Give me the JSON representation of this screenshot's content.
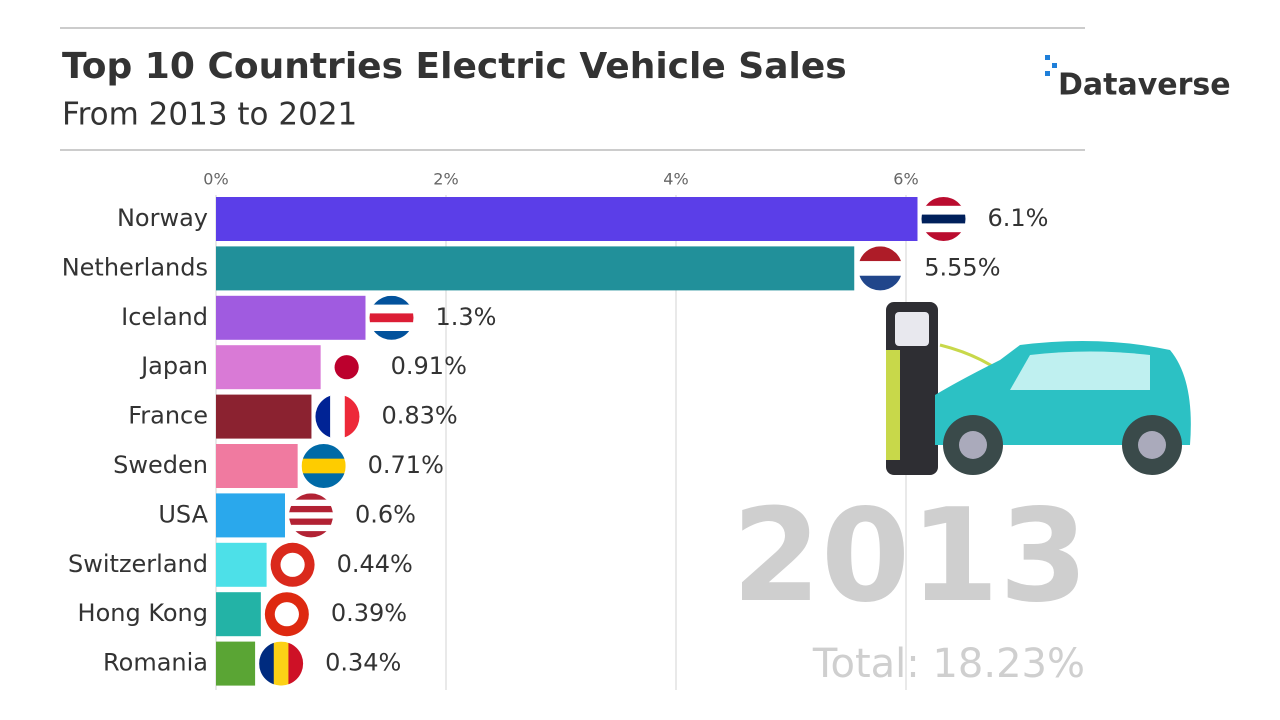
{
  "chart_data": {
    "type": "bar",
    "orientation": "horizontal",
    "title": "Top 10 Countries Electric Vehicle Sales",
    "subtitle": "From 2013 to 2021",
    "logo": "Dataverse",
    "year_label": "2013",
    "total_label": "Total: 18.23%",
    "categories": [
      "Norway",
      "Netherlands",
      "Iceland",
      "Japan",
      "France",
      "Sweden",
      "USA",
      "Switzerland",
      "Hong Kong",
      "Romania"
    ],
    "values": [
      6.1,
      5.55,
      1.3,
      0.91,
      0.83,
      0.71,
      0.6,
      0.44,
      0.39,
      0.34
    ],
    "value_labels": [
      "6.1%",
      "5.55%",
      "1.3%",
      "0.91%",
      "0.83%",
      "0.71%",
      "0.6%",
      "0.44%",
      "0.39%",
      "0.34%"
    ],
    "colors": [
      "#5b3ee8",
      "#21909a",
      "#a05be0",
      "#d97ad6",
      "#8b2230",
      "#f07aa0",
      "#2aa8ec",
      "#4de0e8",
      "#23b3a6",
      "#5aa534"
    ],
    "xlim": [
      0,
      7.5
    ],
    "xticks": [
      {
        "value": 0,
        "label": "0%"
      },
      {
        "value": 2,
        "label": "2%"
      },
      {
        "value": 4,
        "label": "4%"
      },
      {
        "value": 6,
        "label": "6%"
      }
    ],
    "grid": true
  }
}
